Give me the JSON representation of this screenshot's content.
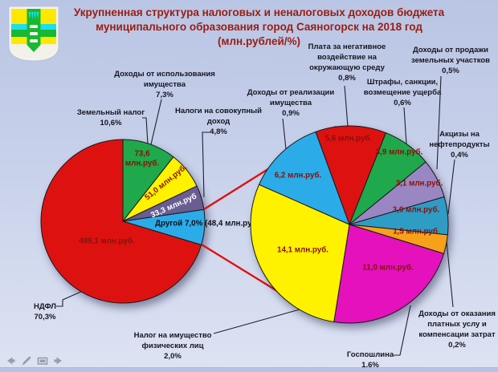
{
  "title": {
    "lines": [
      "Укрупненная структура налоговых и неналоговых доходов бюджета",
      "муниципального образования город Саяногорск на 2018 год",
      "(млн.рублей/%)"
    ]
  },
  "palette": {
    "background_top": "#b9c5e4",
    "background_bottom": "#dde3f3",
    "title_color": "#9a1d12",
    "callout_text_color": "#15151f",
    "value_label_color": "#871209",
    "connector_color": "#e01010"
  },
  "chart_data": {
    "type": "pie",
    "layout": "pie-of-pie",
    "title": "Укрупненная структура налоговых и неналоговых доходов бюджета муниципального образования город Саяногорск на 2018 год (млн.рублей/%)",
    "unit": "млн.руб.",
    "main_pie": {
      "total": 695.4,
      "start_angle": 0,
      "slices": [
        {
          "name": "Земельный налог",
          "value": 73.6,
          "pct": 10.6,
          "color": "#1FA84C",
          "value_label": "73,6\nмлн.руб."
        },
        {
          "name": "Доходы от использования имущества",
          "value": 51.0,
          "pct": 7.3,
          "color": "#FFF200",
          "value_label": "51,0 млн.руб."
        },
        {
          "name": "Налоги на совокупный доход",
          "value": 33.3,
          "pct": 4.8,
          "color": "#6A5D92",
          "value_label": "33,3 млн.руб",
          "label_color": "#FFFFFF"
        },
        {
          "name": "Другой",
          "value": 48.4,
          "pct": 7.0,
          "color": "#2BACE9",
          "value_label": "Другой 7,0% (48,4 млн.руб.)",
          "label_color": "#101018"
        },
        {
          "name": "НДФЛ",
          "value": 489.1,
          "pct": 70.3,
          "color": "#DE1111",
          "value_label": "489,1 млн.руб."
        }
      ]
    },
    "secondary_pie": {
      "total": 48.4,
      "start_angle": -20,
      "slices": [
        {
          "name": "Плата за негативное воздействие на окружающую среду",
          "value": 5.6,
          "pct": 0.8,
          "color": "#DE1111",
          "value_label": "5,6 млн.руб."
        },
        {
          "name": "Штрафы, санкции, возмещение ущерба",
          "value": 3.9,
          "pct": 0.6,
          "color": "#1FA84C",
          "value_label": "3,9 млн.руб."
        },
        {
          "name": "Доходы от продажи земельных участков",
          "value": 3.1,
          "pct": 0.5,
          "color": "#9A86C2",
          "value_label": "3,1 млн.руб."
        },
        {
          "name": "Акцизы на нефтепродукты",
          "value": 3.0,
          "pct": 0.4,
          "color": "#2F9CC6",
          "value_label": "3,0 млн.руб."
        },
        {
          "name": "Доходы от оказания платных услу и компенсации затрат",
          "value": 1.5,
          "pct": 0.2,
          "color": "#F7A11A",
          "value_label": "1,5 млн.руб"
        },
        {
          "name": "Госпошлина",
          "value": 11.0,
          "pct": 1.6,
          "color": "#E411BC",
          "value_label": "11,0 млн.руб."
        },
        {
          "name": "Налог на имущество физических лиц",
          "value": 14.1,
          "pct": 2.0,
          "color": "#FFF200",
          "value_label": "14,1 млн.руб."
        },
        {
          "name": "Доходы от реализации имущества",
          "value": 6.2,
          "pct": 0.9,
          "color": "#2BACE9",
          "value_label": "6,2 млн.руб."
        }
      ]
    }
  },
  "callouts": [
    {
      "id": "plata",
      "lines": [
        "Плата за негативное",
        "воздействие на",
        "окружающую среду"
      ],
      "pct": "0,8%"
    },
    {
      "id": "prodazha",
      "lines": [
        "Доходы от продажи",
        "земельных участков"
      ],
      "pct": "0,5%"
    },
    {
      "id": "ispolz",
      "lines": [
        "Доходы от использования",
        "имущества"
      ],
      "pct": "7,3%"
    },
    {
      "id": "shtrafy",
      "lines": [
        "Штрафы, санкции,",
        "возмещение ущерба"
      ],
      "pct": "0,6%"
    },
    {
      "id": "realiz",
      "lines": [
        "Доходы от реализации",
        "имущества"
      ],
      "pct": "0,9%"
    },
    {
      "id": "sovokup",
      "lines": [
        "Налоги на совокупный",
        "доход"
      ],
      "pct": "4,8%"
    },
    {
      "id": "zemelny",
      "lines": [
        "Земельный налог"
      ],
      "pct": "10,6%"
    },
    {
      "id": "aktsizy",
      "lines": [
        "Акцизы на",
        "нефтепродукты"
      ],
      "pct": "0,4%"
    },
    {
      "id": "ndfl",
      "lines": [
        "НДФЛ"
      ],
      "pct": "70,3%"
    },
    {
      "id": "nalog_imush",
      "lines": [
        "Налог на имущество",
        "физических лиц"
      ],
      "pct": "2,0%"
    },
    {
      "id": "gosposhlina",
      "lines": [
        "Госпошлина"
      ],
      "pct": "1,6%"
    },
    {
      "id": "platnye",
      "lines": [
        "Доходы от оказания",
        "платных услу и",
        "компенсации затрат"
      ],
      "pct": "0,2%"
    }
  ],
  "nav_icons": [
    "previous-arrow",
    "pen",
    "slide-menu",
    "next-arrow"
  ]
}
